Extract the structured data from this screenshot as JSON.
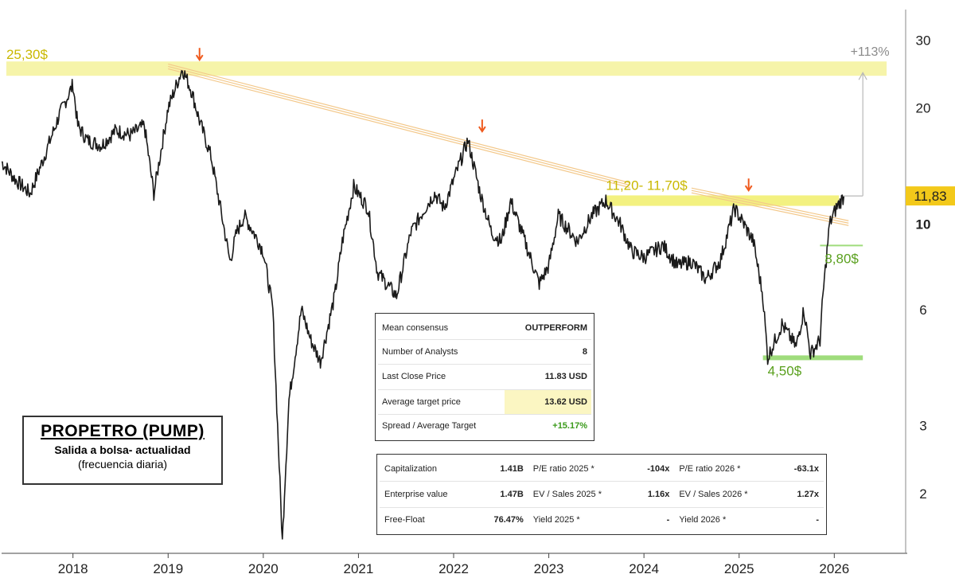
{
  "chart_data": {
    "type": "line",
    "title": "PROPETRO (PUMP)",
    "subtitle": "Salida a bolsa- actualidad",
    "subtitle2": "(frecuencia diaria)",
    "y_scale": "log",
    "ylim": [
      1.4,
      36
    ],
    "y_ticks": [
      {
        "value": 30,
        "label": "30"
      },
      {
        "value": 20,
        "label": "20"
      },
      {
        "value": 10,
        "label": "10"
      },
      {
        "value": 6,
        "label": "6"
      },
      {
        "value": 3,
        "label": "3"
      },
      {
        "value": 2,
        "label": "2"
      }
    ],
    "xlim": [
      2017.25,
      2026.75
    ],
    "x_ticks": [
      "2018",
      "2019",
      "2020",
      "2021",
      "2022",
      "2023",
      "2024",
      "2025",
      "2026"
    ],
    "series": [
      {
        "color": "#1a1a1a",
        "x": [
          2017.25,
          2017.4,
          2017.55,
          2017.7,
          2017.85,
          2018.0,
          2018.05,
          2018.15,
          2018.3,
          2018.45,
          2018.6,
          2018.75,
          2018.85,
          2019.0,
          2019.15,
          2019.25,
          2019.33,
          2019.45,
          2019.55,
          2019.65,
          2019.72,
          2019.8,
          2019.9,
          2020.0,
          2020.1,
          2020.2,
          2020.23,
          2020.27,
          2020.4,
          2020.5,
          2020.6,
          2020.75,
          2020.83,
          2020.95,
          2021.1,
          2021.2,
          2021.4,
          2021.55,
          2021.7,
          2021.8,
          2021.9,
          2022.0,
          2022.15,
          2022.28,
          2022.4,
          2022.5,
          2022.6,
          2022.75,
          2022.9,
          2023.0,
          2023.1,
          2023.3,
          2023.45,
          2023.6,
          2023.75,
          2023.87,
          2024.0,
          2024.2,
          2024.35,
          2024.5,
          2024.65,
          2024.8,
          2024.95,
          2025.05,
          2025.15,
          2025.25,
          2025.3,
          2025.45,
          2025.6,
          2025.68,
          2025.75,
          2025.85,
          2025.88,
          2025.95,
          2026.02,
          2026.1
        ],
        "y": [
          14.5,
          13.0,
          12.0,
          15.0,
          19.0,
          23.0,
          18.0,
          16.5,
          16.0,
          17.5,
          17.0,
          18.0,
          12.0,
          20.0,
          25.3,
          22.0,
          18.5,
          15.0,
          11.0,
          8.0,
          9.5,
          10.5,
          9.5,
          8.5,
          6.0,
          1.5,
          2.2,
          3.5,
          6.0,
          5.0,
          4.4,
          6.5,
          9.0,
          12.5,
          11.0,
          7.5,
          6.5,
          9.5,
          11.0,
          12.0,
          11.0,
          13.0,
          16.5,
          12.0,
          9.5,
          9.0,
          11.5,
          9.0,
          7.0,
          7.8,
          10.5,
          9.0,
          10.5,
          11.5,
          10.0,
          8.5,
          8.2,
          8.8,
          7.8,
          8.0,
          7.2,
          8.0,
          11.0,
          10.0,
          9.0,
          6.5,
          4.5,
          5.5,
          4.8,
          6.0,
          4.6,
          5.0,
          6.5,
          10.0,
          11.0,
          11.8
        ]
      }
    ],
    "annotations": {
      "level_high": {
        "value": 25.3,
        "label": "25,30$"
      },
      "zone_resistance": {
        "low": 11.2,
        "high": 11.7,
        "label": "11,20- 11,70$"
      },
      "level_support_mid": {
        "value": 8.8,
        "label": "8,80$"
      },
      "level_support_low": {
        "value": 4.5,
        "label": "4,50$"
      },
      "upside_label": "+113%",
      "last_price_label": "11,83",
      "top_markers_x": [
        2019.33,
        2022.3,
        2025.1
      ]
    },
    "colors": {
      "price": "#1a1a1a",
      "resistance_band": "#f5f29a",
      "support_band": "#9fdc7c",
      "trendline": "#f3c88a",
      "arrow": "#ef5a1e",
      "last_price_badge": "#f3c91a"
    }
  },
  "consensus_table": {
    "rows": [
      {
        "label": "Mean consensus",
        "value": "OUTPERFORM"
      },
      {
        "label": "Number of Analysts",
        "value": "8"
      },
      {
        "label": "Last Close Price",
        "value": "11.83 USD"
      },
      {
        "label": "Average target price",
        "value": "13.62 USD"
      },
      {
        "label": "Spread / Average Target",
        "value": "+15.17%"
      }
    ]
  },
  "metrics_table": {
    "rows": [
      {
        "l1": "Capitalization",
        "v1": "1.41B",
        "l2": "P/E ratio 2025 *",
        "v2": "-104x",
        "l3": "P/E ratio 2026 *",
        "v3": "-63.1x"
      },
      {
        "l1": "Enterprise value",
        "v1": "1.47B",
        "l2": "EV / Sales 2025 *",
        "v2": "1.16x",
        "l3": "EV / Sales 2026 *",
        "v3": "1.27x"
      },
      {
        "l1": "Free-Float",
        "v1": "76.47%",
        "l2": "Yield 2025 *",
        "v2": "-",
        "l3": "Yield 2026 *",
        "v3": "-"
      }
    ]
  },
  "title_box": {
    "main": "PROPETRO (PUMP)",
    "sub1": "Salida a bolsa- actualidad",
    "sub2": "(frecuencia diaria)"
  }
}
